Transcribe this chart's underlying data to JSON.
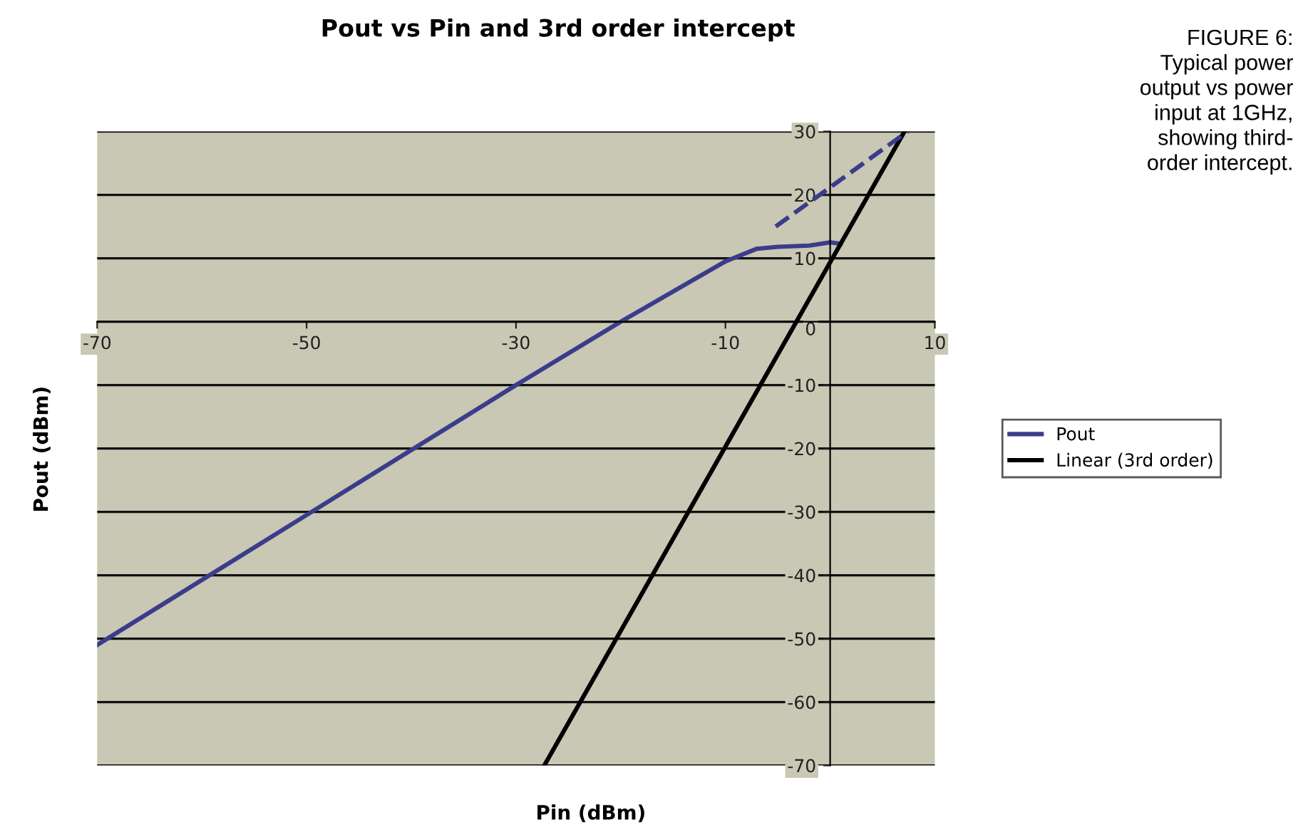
{
  "chart_data": {
    "type": "line",
    "title": "Pout vs Pin and 3rd order intercept",
    "xlabel": "Pin (dBm)",
    "ylabel": "Pout (dBm)",
    "annotations": [
      "FIGURE 6:\nTypical power\noutput vs power\ninput at 1GHz,\nshowing third-\norder intercept."
    ],
    "series": [
      {
        "name": "Pout",
        "color": "#3c3c8c",
        "x": [
          -70,
          -50,
          -30,
          -20,
          -10,
          -7,
          -5,
          -2,
          0,
          1
        ],
        "values": [
          -51,
          -30.5,
          -10,
          0,
          9.5,
          11.5,
          11.8,
          12,
          12.5,
          12.3
        ]
      },
      {
        "name": "Linear (3rd order)",
        "color": "#000000",
        "x": [
          -27.3,
          7.1
        ],
        "values": [
          -70,
          30
        ]
      },
      {
        "color": "#3c3c8c",
        "line_style": "dashed",
        "x": [
          -5.2,
          7.4
        ],
        "values": [
          15,
          30
        ]
      }
    ],
    "xlim": [
      -70,
      10
    ],
    "xticks": [
      -70,
      -50,
      -30,
      -10,
      10
    ],
    "ylim": [
      -70,
      30
    ],
    "yticks": [
      -70,
      -60,
      -50,
      -40,
      -30,
      -20,
      -10,
      0,
      10,
      20,
      30
    ],
    "grid": "y",
    "legend": "right",
    "marker": "none",
    "line_style": "solid"
  }
}
